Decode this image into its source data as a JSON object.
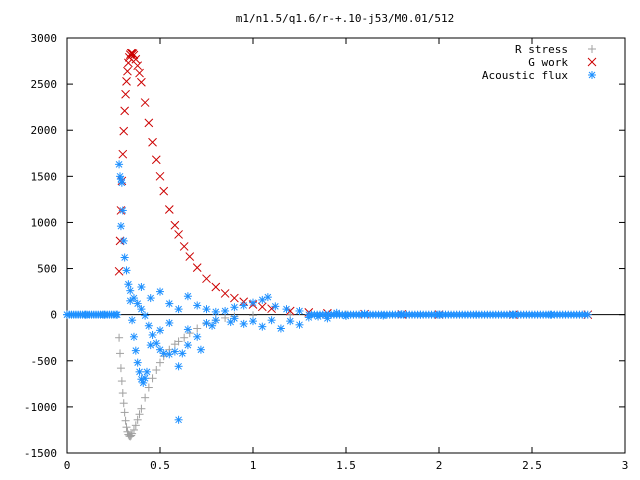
{
  "chart_data": {
    "type": "scatter",
    "title": "m1/n1.5/q1.6/r-+.10-j53/M0.01/512",
    "xlabel": "",
    "ylabel": "",
    "xlim": [
      0,
      3
    ],
    "ylim": [
      -1500,
      3000
    ],
    "x_ticks": [
      "0",
      "0.5",
      "1",
      "1.5",
      "2",
      "2.5",
      "3"
    ],
    "y_ticks": [
      "3000",
      "2500",
      "2000",
      "1500",
      "1000",
      "500",
      "0",
      "-500",
      "-1000",
      "-1500"
    ],
    "grid": false,
    "legend_position": "top-right",
    "series": [
      {
        "name": "R stress",
        "marker": "plus",
        "color": "#a0a0a0",
        "points": [
          [
            0.28,
            -250
          ],
          [
            0.285,
            -420
          ],
          [
            0.29,
            -580
          ],
          [
            0.295,
            -720
          ],
          [
            0.3,
            -850
          ],
          [
            0.305,
            -960
          ],
          [
            0.31,
            -1060
          ],
          [
            0.315,
            -1150
          ],
          [
            0.32,
            -1220
          ],
          [
            0.325,
            -1270
          ],
          [
            0.33,
            -1300
          ],
          [
            0.335,
            -1315
          ],
          [
            0.34,
            -1320
          ],
          [
            0.345,
            -1310
          ],
          [
            0.35,
            -1290
          ],
          [
            0.36,
            -1250
          ],
          [
            0.37,
            -1200
          ],
          [
            0.38,
            -1140
          ],
          [
            0.39,
            -1080
          ],
          [
            0.4,
            -1020
          ],
          [
            0.42,
            -900
          ],
          [
            0.44,
            -790
          ],
          [
            0.46,
            -690
          ],
          [
            0.48,
            -600
          ],
          [
            0.5,
            -520
          ],
          [
            0.52,
            -450
          ],
          [
            0.55,
            -380
          ],
          [
            0.58,
            -320
          ],
          [
            0.6,
            -290
          ],
          [
            0.63,
            -250
          ],
          [
            0.66,
            -200
          ],
          [
            0.7,
            -150
          ],
          [
            0.75,
            -100
          ],
          [
            0.8,
            -60
          ],
          [
            0.85,
            -35
          ],
          [
            0.9,
            -20
          ],
          [
            1.0,
            -8
          ],
          [
            1.2,
            -2
          ],
          [
            1.5,
            0
          ],
          [
            2.0,
            0
          ]
        ]
      },
      {
        "name": "G work",
        "marker": "cross",
        "color": "#cc0000",
        "points": [
          [
            0.28,
            470
          ],
          [
            0.285,
            800
          ],
          [
            0.29,
            1130
          ],
          [
            0.295,
            1450
          ],
          [
            0.3,
            1740
          ],
          [
            0.305,
            1990
          ],
          [
            0.31,
            2210
          ],
          [
            0.315,
            2390
          ],
          [
            0.32,
            2530
          ],
          [
            0.325,
            2640
          ],
          [
            0.33,
            2730
          ],
          [
            0.335,
            2790
          ],
          [
            0.34,
            2820
          ],
          [
            0.345,
            2835
          ],
          [
            0.35,
            2835
          ],
          [
            0.355,
            2830
          ],
          [
            0.36,
            2815
          ],
          [
            0.37,
            2770
          ],
          [
            0.38,
            2700
          ],
          [
            0.39,
            2620
          ],
          [
            0.4,
            2520
          ],
          [
            0.42,
            2300
          ],
          [
            0.44,
            2080
          ],
          [
            0.46,
            1870
          ],
          [
            0.48,
            1680
          ],
          [
            0.5,
            1500
          ],
          [
            0.52,
            1340
          ],
          [
            0.55,
            1140
          ],
          [
            0.58,
            970
          ],
          [
            0.6,
            870
          ],
          [
            0.63,
            740
          ],
          [
            0.66,
            630
          ],
          [
            0.7,
            510
          ],
          [
            0.75,
            390
          ],
          [
            0.8,
            300
          ],
          [
            0.85,
            230
          ],
          [
            0.9,
            180
          ],
          [
            0.95,
            140
          ],
          [
            1.0,
            110
          ],
          [
            1.05,
            85
          ],
          [
            1.1,
            65
          ],
          [
            1.2,
            40
          ],
          [
            1.3,
            25
          ],
          [
            1.4,
            15
          ],
          [
            1.6,
            6
          ],
          [
            1.8,
            3
          ],
          [
            2.0,
            1
          ],
          [
            2.4,
            0
          ],
          [
            2.8,
            0
          ]
        ]
      },
      {
        "name": "Acoustic flux",
        "marker": "star",
        "color": "#1e90ff",
        "points": [
          [
            0.0,
            0
          ],
          [
            0.1,
            0
          ],
          [
            0.2,
            0
          ],
          [
            0.27,
            0
          ],
          [
            0.28,
            1630
          ],
          [
            0.285,
            1500
          ],
          [
            0.29,
            1470
          ],
          [
            0.295,
            1430
          ],
          [
            0.3,
            1130
          ],
          [
            0.29,
            960
          ],
          [
            0.305,
            800
          ],
          [
            0.31,
            620
          ],
          [
            0.32,
            480
          ],
          [
            0.33,
            330
          ],
          [
            0.34,
            150
          ],
          [
            0.35,
            -60
          ],
          [
            0.36,
            -240
          ],
          [
            0.37,
            -390
          ],
          [
            0.38,
            -520
          ],
          [
            0.39,
            -620
          ],
          [
            0.4,
            -700
          ],
          [
            0.41,
            -740
          ],
          [
            0.42,
            -690
          ],
          [
            0.43,
            -620
          ],
          [
            0.34,
            260
          ],
          [
            0.36,
            180
          ],
          [
            0.38,
            120
          ],
          [
            0.4,
            60
          ],
          [
            0.42,
            -10
          ],
          [
            0.44,
            -120
          ],
          [
            0.46,
            -220
          ],
          [
            0.48,
            -310
          ],
          [
            0.5,
            -380
          ],
          [
            0.52,
            -420
          ],
          [
            0.55,
            -430
          ],
          [
            0.58,
            -400
          ],
          [
            0.6,
            -560
          ],
          [
            0.62,
            -420
          ],
          [
            0.65,
            -330
          ],
          [
            0.4,
            300
          ],
          [
            0.45,
            180
          ],
          [
            0.5,
            250
          ],
          [
            0.55,
            120
          ],
          [
            0.6,
            60
          ],
          [
            0.45,
            -330
          ],
          [
            0.5,
            -170
          ],
          [
            0.55,
            -90
          ],
          [
            0.6,
            -1140
          ],
          [
            0.65,
            -160
          ],
          [
            0.7,
            -240
          ],
          [
            0.72,
            -380
          ],
          [
            0.75,
            -90
          ],
          [
            0.78,
            -120
          ],
          [
            0.8,
            -60
          ],
          [
            0.65,
            200
          ],
          [
            0.7,
            100
          ],
          [
            0.75,
            60
          ],
          [
            0.8,
            30
          ],
          [
            0.85,
            40
          ],
          [
            0.88,
            -80
          ],
          [
            0.9,
            -40
          ],
          [
            0.95,
            -100
          ],
          [
            1.0,
            -70
          ],
          [
            1.05,
            -130
          ],
          [
            1.1,
            -60
          ],
          [
            1.15,
            -150
          ],
          [
            1.2,
            -70
          ],
          [
            1.25,
            -110
          ],
          [
            1.3,
            -30
          ],
          [
            0.9,
            80
          ],
          [
            0.95,
            100
          ],
          [
            1.0,
            130
          ],
          [
            1.05,
            160
          ],
          [
            1.08,
            190
          ],
          [
            1.12,
            90
          ],
          [
            1.18,
            60
          ],
          [
            1.25,
            40
          ],
          [
            1.35,
            -20
          ],
          [
            1.4,
            -40
          ],
          [
            1.45,
            20
          ],
          [
            1.5,
            -15
          ],
          [
            1.6,
            10
          ],
          [
            1.7,
            -10
          ],
          [
            1.8,
            5
          ],
          [
            1.9,
            0
          ],
          [
            2.0,
            0
          ],
          [
            2.2,
            0
          ],
          [
            2.4,
            0
          ],
          [
            2.6,
            0
          ],
          [
            2.8,
            0
          ]
        ]
      }
    ]
  }
}
